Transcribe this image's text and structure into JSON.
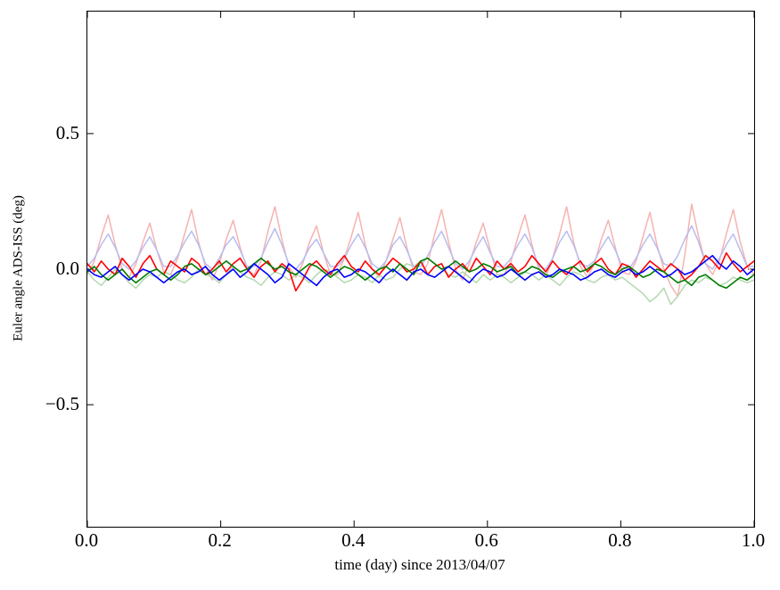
{
  "figure": {
    "background": "#ffffff",
    "border_color": "#000000"
  },
  "chart_data": {
    "type": "line",
    "title": "",
    "xlabel": "time (day) since 2013/04/07",
    "ylabel": "Euler angle ADS-ISS (deg)",
    "xlim": [
      0.0,
      1.0
    ],
    "ylim": [
      -0.95,
      0.95
    ],
    "xticks": [
      0.0,
      0.2,
      0.4,
      0.6,
      0.8,
      1.0
    ],
    "xtick_labels": [
      "0.0",
      "0.2",
      "0.4",
      "0.6",
      "0.8",
      "1.0"
    ],
    "yticks": [
      0.5,
      0.0,
      -0.5
    ],
    "ytick_labels": [
      "0.5",
      "0.0",
      "−0.5"
    ],
    "grid": false,
    "legend_position": "none",
    "x_sampling": "uniform from 0.0 to 1.0, 97 points per series",
    "tick_direction": "in",
    "series": [
      {
        "name": "euler-angle-faded-red",
        "color": "#f5b3af",
        "width": 1.5,
        "y": [
          -0.02,
          0.03,
          0.12,
          0.2,
          0.09,
          0.0,
          -0.03,
          0.02,
          0.1,
          0.17,
          0.07,
          -0.01,
          -0.02,
          0.04,
          0.13,
          0.22,
          0.1,
          0.01,
          -0.04,
          0.02,
          0.11,
          0.18,
          0.08,
          0.0,
          -0.02,
          0.03,
          0.14,
          0.23,
          0.11,
          0.01,
          -0.03,
          0.02,
          0.1,
          0.16,
          0.06,
          -0.02,
          -0.02,
          0.04,
          0.12,
          0.21,
          0.09,
          0.0,
          -0.03,
          0.03,
          0.11,
          0.19,
          0.08,
          -0.01,
          -0.02,
          0.02,
          0.13,
          0.22,
          0.1,
          0.0,
          -0.04,
          0.02,
          0.1,
          0.17,
          0.07,
          -0.02,
          -0.02,
          0.03,
          0.12,
          0.2,
          0.09,
          0.0,
          -0.03,
          0.04,
          0.13,
          0.23,
          0.1,
          0.01,
          -0.03,
          0.02,
          0.11,
          0.18,
          0.08,
          -0.01,
          -0.02,
          0.03,
          0.12,
          0.21,
          0.09,
          0.0,
          -0.06,
          -0.1,
          0.05,
          0.24,
          0.12,
          0.02,
          -0.02,
          0.03,
          0.13,
          0.22,
          0.1,
          0.01,
          -0.02
        ]
      },
      {
        "name": "euler-angle-faded-green",
        "color": "#b3d8af",
        "width": 1.5,
        "y": [
          -0.01,
          -0.04,
          -0.06,
          -0.03,
          0.0,
          -0.02,
          -0.05,
          -0.07,
          -0.04,
          -0.02,
          -0.03,
          -0.01,
          -0.02,
          -0.04,
          -0.05,
          -0.03,
          0.0,
          -0.02,
          -0.03,
          -0.05,
          -0.02,
          0.01,
          -0.01,
          -0.03,
          -0.04,
          -0.06,
          -0.03,
          -0.01,
          -0.02,
          -0.04,
          -0.02,
          -0.03,
          -0.05,
          -0.02,
          0.0,
          -0.01,
          -0.03,
          -0.05,
          -0.04,
          -0.02,
          -0.03,
          -0.05,
          -0.02,
          -0.04,
          -0.03,
          0.0,
          0.02,
          0.01,
          0.03,
          0.04,
          0.02,
          0.0,
          -0.02,
          -0.03,
          -0.01,
          -0.03,
          -0.05,
          -0.02,
          -0.04,
          -0.02,
          -0.03,
          -0.05,
          -0.03,
          -0.01,
          -0.02,
          -0.04,
          -0.02,
          -0.04,
          -0.06,
          -0.03,
          -0.01,
          -0.02,
          -0.04,
          -0.05,
          -0.03,
          -0.02,
          -0.04,
          -0.03,
          -0.05,
          -0.07,
          -0.09,
          -0.12,
          -0.1,
          -0.07,
          -0.13,
          -0.1,
          -0.06,
          -0.04,
          -0.05,
          -0.03,
          -0.04,
          -0.06,
          -0.05,
          -0.03,
          -0.04,
          -0.05,
          -0.04
        ]
      },
      {
        "name": "euler-angle-faded-blue",
        "color": "#b8bdf0",
        "width": 1.5,
        "y": [
          0.01,
          0.04,
          0.09,
          0.13,
          0.08,
          0.02,
          0.0,
          0.03,
          0.08,
          0.12,
          0.07,
          0.01,
          0.01,
          0.05,
          0.1,
          0.14,
          0.09,
          0.02,
          0.0,
          0.04,
          0.09,
          0.12,
          0.07,
          0.01,
          0.01,
          0.04,
          0.1,
          0.15,
          0.09,
          0.02,
          0.0,
          0.03,
          0.08,
          0.11,
          0.06,
          0.01,
          0.01,
          0.04,
          0.09,
          0.13,
          0.08,
          0.02,
          0.0,
          0.03,
          0.09,
          0.12,
          0.07,
          0.01,
          0.01,
          0.05,
          0.1,
          0.14,
          0.08,
          0.02,
          0.0,
          0.03,
          0.08,
          0.12,
          0.06,
          0.01,
          0.01,
          0.04,
          0.09,
          0.13,
          0.08,
          0.01,
          0.0,
          0.04,
          0.1,
          0.14,
          0.09,
          0.02,
          0.01,
          0.03,
          0.08,
          0.12,
          0.07,
          0.01,
          0.0,
          0.04,
          0.09,
          0.13,
          0.08,
          0.02,
          0.01,
          0.05,
          0.11,
          0.16,
          0.1,
          0.02,
          0.0,
          0.04,
          0.09,
          0.13,
          0.07,
          0.01,
          0.01
        ]
      },
      {
        "name": "euler-angle-red",
        "color": "#ff0000",
        "width": 1.6,
        "y": [
          0.02,
          -0.01,
          0.03,
          0.0,
          -0.02,
          0.04,
          0.01,
          -0.03,
          0.02,
          0.05,
          0.0,
          -0.02,
          0.03,
          0.01,
          -0.01,
          0.04,
          0.02,
          -0.02,
          0.0,
          0.03,
          -0.01,
          0.02,
          0.04,
          0.0,
          -0.03,
          0.01,
          0.03,
          -0.01,
          0.02,
          0.0,
          -0.08,
          -0.04,
          0.01,
          0.03,
          0.0,
          -0.02,
          0.02,
          0.05,
          0.01,
          -0.01,
          0.03,
          0.0,
          -0.02,
          0.01,
          0.04,
          0.02,
          -0.01,
          0.0,
          0.03,
          -0.02,
          0.01,
          0.02,
          -0.03,
          0.0,
          0.02,
          -0.01,
          0.04,
          0.01,
          -0.02,
          0.03,
          0.0,
          0.02,
          -0.01,
          0.01,
          0.05,
          0.02,
          -0.01,
          0.03,
          0.0,
          -0.02,
          0.01,
          0.03,
          -0.01,
          0.02,
          0.04,
          0.0,
          -0.02,
          0.02,
          0.01,
          -0.03,
          0.0,
          0.03,
          0.01,
          -0.01,
          0.02,
          0.0,
          -0.04,
          -0.02,
          0.01,
          0.05,
          0.03,
          0.0,
          0.06,
          0.02,
          -0.01,
          0.01,
          0.03
        ]
      },
      {
        "name": "euler-angle-green",
        "color": "#007d00",
        "width": 1.6,
        "y": [
          -0.01,
          0.01,
          -0.02,
          -0.04,
          -0.02,
          0.0,
          -0.03,
          -0.05,
          -0.03,
          -0.01,
          0.0,
          -0.02,
          -0.04,
          -0.02,
          0.01,
          0.02,
          0.0,
          -0.02,
          -0.01,
          0.01,
          0.03,
          0.01,
          -0.01,
          0.0,
          0.02,
          0.04,
          0.02,
          0.0,
          0.01,
          -0.01,
          -0.02,
          0.0,
          0.02,
          0.01,
          -0.01,
          -0.03,
          -0.01,
          0.01,
          0.0,
          -0.02,
          -0.04,
          -0.02,
          0.0,
          0.01,
          -0.01,
          0.02,
          0.0,
          -0.02,
          0.03,
          0.04,
          0.02,
          0.0,
          0.01,
          0.03,
          0.01,
          -0.01,
          0.0,
          0.02,
          0.01,
          -0.01,
          0.0,
          0.01,
          -0.02,
          -0.01,
          0.01,
          0.0,
          -0.02,
          -0.03,
          -0.01,
          0.0,
          0.01,
          -0.01,
          0.0,
          0.02,
          0.01,
          -0.01,
          -0.02,
          0.0,
          0.01,
          -0.01,
          -0.03,
          -0.02,
          0.0,
          -0.01,
          -0.03,
          -0.05,
          -0.04,
          -0.06,
          -0.03,
          -0.02,
          -0.04,
          -0.06,
          -0.07,
          -0.05,
          -0.03,
          -0.04,
          -0.02
        ]
      },
      {
        "name": "euler-angle-blue",
        "color": "#0000ff",
        "width": 1.6,
        "y": [
          0.0,
          -0.02,
          -0.03,
          -0.01,
          0.01,
          -0.02,
          -0.04,
          -0.02,
          0.0,
          -0.01,
          -0.03,
          -0.05,
          -0.03,
          -0.01,
          0.0,
          -0.02,
          -0.01,
          0.01,
          -0.02,
          -0.04,
          -0.02,
          0.0,
          -0.03,
          -0.01,
          0.02,
          0.0,
          -0.02,
          -0.05,
          -0.03,
          0.02,
          0.0,
          -0.02,
          -0.04,
          -0.06,
          -0.03,
          -0.01,
          0.0,
          -0.03,
          -0.02,
          0.0,
          -0.01,
          -0.03,
          -0.05,
          -0.02,
          0.0,
          -0.02,
          -0.04,
          -0.01,
          0.0,
          -0.02,
          -0.03,
          -0.01,
          0.01,
          -0.01,
          -0.03,
          -0.05,
          -0.02,
          0.0,
          -0.01,
          -0.03,
          -0.02,
          0.0,
          -0.02,
          -0.04,
          -0.02,
          -0.01,
          -0.03,
          -0.02,
          0.0,
          -0.01,
          -0.02,
          -0.04,
          -0.03,
          -0.01,
          0.0,
          -0.02,
          -0.03,
          -0.01,
          0.0,
          -0.02,
          -0.01,
          0.01,
          -0.01,
          -0.03,
          -0.02,
          0.0,
          -0.02,
          -0.01,
          0.01,
          0.03,
          0.05,
          0.02,
          0.0,
          0.03,
          0.01,
          -0.02,
          0.0
        ]
      }
    ]
  }
}
